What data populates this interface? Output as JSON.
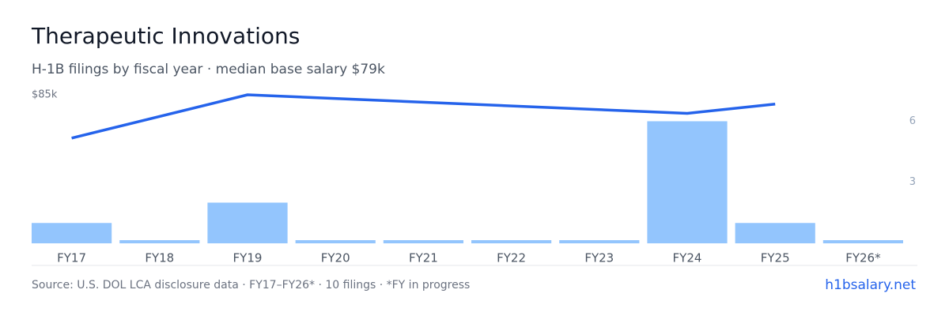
{
  "chart_data": {
    "type": "bar",
    "title": "Therapeutic Innovations",
    "subtitle": "H-1B filings by fiscal year · median base salary $79k",
    "categories": [
      "FY17",
      "FY18",
      "FY19",
      "FY20",
      "FY21",
      "FY22",
      "FY23",
      "FY24",
      "FY25",
      "FY26*"
    ],
    "series": [
      {
        "type": "bar",
        "axis": "y2",
        "color": "#93c5fd",
        "values": [
          1,
          0,
          2,
          0,
          0,
          0,
          0,
          6,
          1,
          0
        ]
      },
      {
        "type": "line",
        "color": "#2563eb",
        "x": [
          "FY17",
          "FY19",
          "FY24",
          "FY25"
        ],
        "values": [
          78,
          85,
          82,
          83.5
        ]
      }
    ],
    "ylim": [
      61,
      85
    ],
    "yticks": [
      {
        "value": 85,
        "label": "$85k"
      }
    ],
    "y2lim": [
      0,
      7.3
    ],
    "y2ticks": [
      3,
      6
    ],
    "source": "Source: U.S. DOL LCA disclosure data · FY17–FY26* · 10 filings · *FY in progress",
    "brand": "h1bsalary.net"
  }
}
